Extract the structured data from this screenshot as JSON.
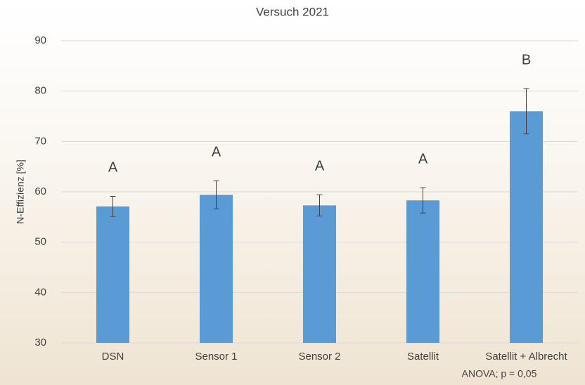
{
  "chart_data": {
    "type": "bar",
    "title": "Versuch 2021",
    "y_label": "N-Effizienz [%]",
    "categories": [
      "DSN",
      "Sensor 1",
      "Sensor 2",
      "Satellit",
      "Satellit + Albrecht"
    ],
    "values": [
      57.1,
      59.4,
      57.3,
      58.3,
      76.0
    ],
    "errors": [
      2.0,
      2.8,
      2.1,
      2.5,
      4.5
    ],
    "significance_letters": [
      "A",
      "A",
      "A",
      "A",
      "B"
    ],
    "annotation": "ANOVA; p = 0,05",
    "color": "#5b9bd5",
    "ylim": [
      30,
      90
    ],
    "yticks": [
      30,
      40,
      50,
      60,
      70,
      80,
      90
    ],
    "grid": true
  }
}
